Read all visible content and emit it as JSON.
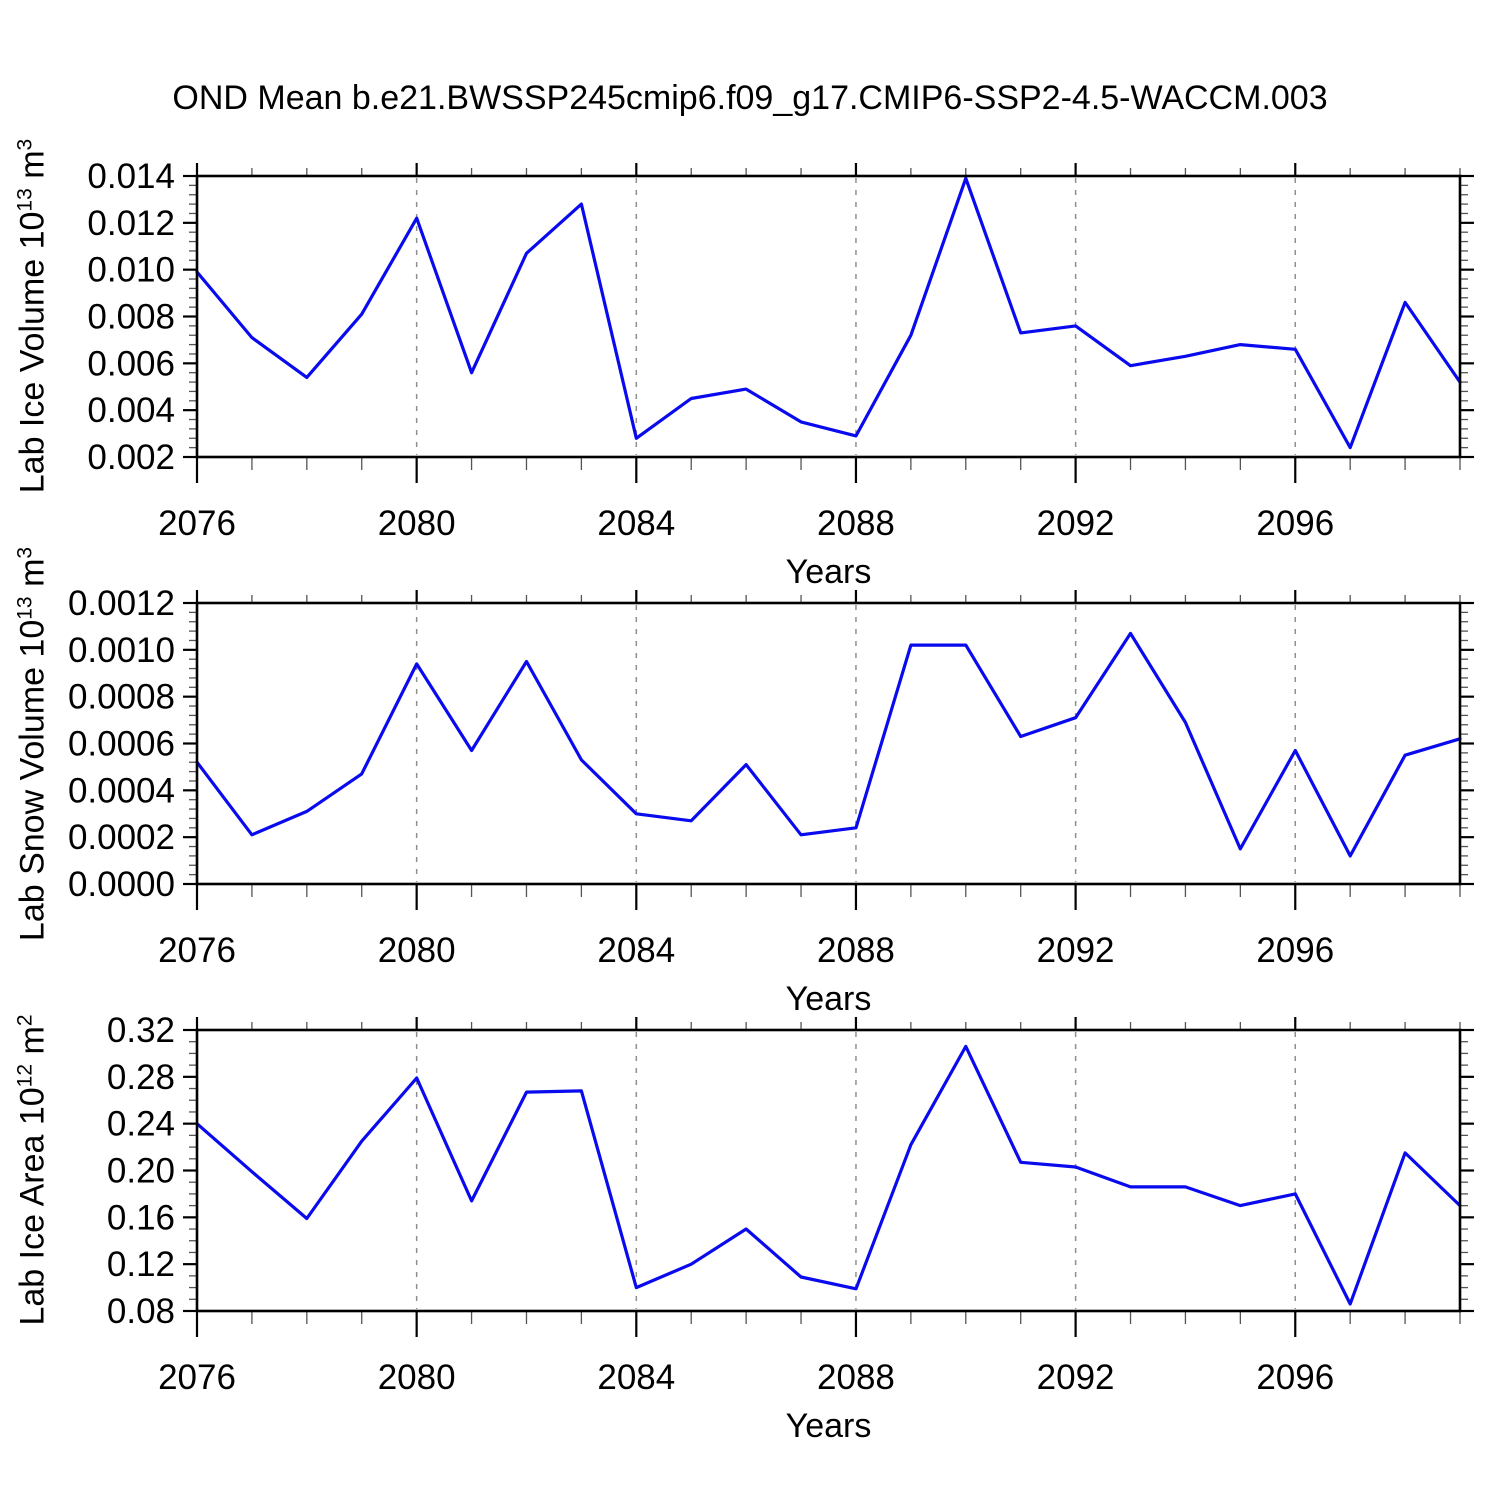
{
  "title": "OND Mean b.e21.BWSSP245cmip6.f09_g17.CMIP6-SSP2-4.5-WACCM.003",
  "chart_data": [
    {
      "type": "line",
      "series_color": "#0a0aee",
      "ylabel": "Lab Ice Volume 10^13 m^3",
      "ylabel_prefix": "Lab Ice Volume 10",
      "ylabel_exp": "13",
      "ylabel_unit": " m",
      "ylabel_unit_exp": "3",
      "xlabel": "Years",
      "xlim": [
        2076,
        2099
      ],
      "ylim": [
        0.002,
        0.014
      ],
      "grid_on": true,
      "grid_x": [
        2080,
        2084,
        2088,
        2092,
        2096
      ],
      "x": [
        2076,
        2077,
        2078,
        2079,
        2080,
        2081,
        2082,
        2083,
        2084,
        2085,
        2086,
        2087,
        2088,
        2089,
        2090,
        2091,
        2092,
        2093,
        2094,
        2095,
        2096,
        2097,
        2098,
        2099
      ],
      "values": [
        0.0099,
        0.0071,
        0.0054,
        0.0081,
        0.0122,
        0.0056,
        0.0107,
        0.0128,
        0.0028,
        0.0045,
        0.0049,
        0.0035,
        0.0029,
        0.0072,
        0.0139,
        0.0073,
        0.0076,
        0.0059,
        0.0063,
        0.0068,
        0.0066,
        0.0024,
        0.0086,
        0.0052
      ],
      "yticks": {
        "values": [
          0.002,
          0.004,
          0.006,
          0.008,
          0.01,
          0.012,
          0.014
        ],
        "labels": [
          "0.002",
          "0.004",
          "0.006",
          "0.008",
          "0.010",
          "0.012",
          "0.014"
        ],
        "minor_step": 0.0004
      },
      "xticks": {
        "major_values": [
          2076,
          2080,
          2084,
          2088,
          2092,
          2096
        ],
        "labels": [
          "2076",
          "2080",
          "2084",
          "2088",
          "2092",
          "2096"
        ],
        "minor_step": 1
      }
    },
    {
      "type": "line",
      "series_color": "#0a0aee",
      "ylabel": "Lab Snow Volume 10^13 m^3",
      "ylabel_prefix": "Lab Snow Volume 10",
      "ylabel_exp": "13",
      "ylabel_unit": " m",
      "ylabel_unit_exp": "3",
      "xlabel": "Years",
      "xlim": [
        2076,
        2099
      ],
      "ylim": [
        0.0,
        0.0012
      ],
      "grid_on": true,
      "grid_x": [
        2080,
        2084,
        2088,
        2092,
        2096
      ],
      "x": [
        2076,
        2077,
        2078,
        2079,
        2080,
        2081,
        2082,
        2083,
        2084,
        2085,
        2086,
        2087,
        2088,
        2089,
        2090,
        2091,
        2092,
        2093,
        2094,
        2095,
        2096,
        2097,
        2098,
        2099
      ],
      "values": [
        0.00052,
        0.00021,
        0.00031,
        0.00047,
        0.00094,
        0.00057,
        0.00095,
        0.00053,
        0.0003,
        0.00027,
        0.00051,
        0.00021,
        0.00024,
        0.00102,
        0.00102,
        0.00063,
        0.00071,
        0.00107,
        0.00069,
        0.00015,
        0.00057,
        0.00012,
        0.00055,
        0.00062
      ],
      "yticks": {
        "values": [
          0.0,
          0.0002,
          0.0004,
          0.0006,
          0.0008,
          0.001,
          0.0012
        ],
        "labels": [
          "0.0000",
          "0.0002",
          "0.0004",
          "0.0006",
          "0.0008",
          "0.0010",
          "0.0012"
        ],
        "minor_step": 4e-05
      },
      "xticks": {
        "major_values": [
          2076,
          2080,
          2084,
          2088,
          2092,
          2096
        ],
        "labels": [
          "2076",
          "2080",
          "2084",
          "2088",
          "2092",
          "2096"
        ],
        "minor_step": 1
      }
    },
    {
      "type": "line",
      "series_color": "#0a0aee",
      "ylabel": "Lab Ice Area 10^12 m^2",
      "ylabel_prefix": "Lab Ice Area 10",
      "ylabel_exp": "12",
      "ylabel_unit": " m",
      "ylabel_unit_exp": "2",
      "xlabel": "Years",
      "xlim": [
        2076,
        2099
      ],
      "ylim": [
        0.08,
        0.32
      ],
      "grid_on": true,
      "grid_x": [
        2080,
        2084,
        2088,
        2092,
        2096
      ],
      "x": [
        2076,
        2077,
        2078,
        2079,
        2080,
        2081,
        2082,
        2083,
        2084,
        2085,
        2086,
        2087,
        2088,
        2089,
        2090,
        2091,
        2092,
        2093,
        2094,
        2095,
        2096,
        2097,
        2098,
        2099
      ],
      "values": [
        0.24,
        0.199,
        0.159,
        0.225,
        0.279,
        0.174,
        0.267,
        0.268,
        0.1,
        0.12,
        0.15,
        0.109,
        0.099,
        0.222,
        0.306,
        0.207,
        0.203,
        0.186,
        0.186,
        0.17,
        0.18,
        0.086,
        0.215,
        0.17
      ],
      "yticks": {
        "values": [
          0.08,
          0.12,
          0.16,
          0.2,
          0.24,
          0.28,
          0.32
        ],
        "labels": [
          "0.08",
          "0.12",
          "0.16",
          "0.20",
          "0.24",
          "0.28",
          "0.32"
        ],
        "minor_step": 0.01
      },
      "xticks": {
        "major_values": [
          2076,
          2080,
          2084,
          2088,
          2092,
          2096
        ],
        "labels": [
          "2076",
          "2080",
          "2084",
          "2088",
          "2092",
          "2096"
        ],
        "minor_step": 1
      }
    }
  ]
}
